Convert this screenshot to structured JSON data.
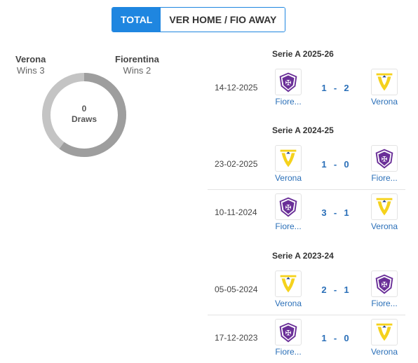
{
  "tabs": [
    {
      "label": "TOTAL",
      "active": true
    },
    {
      "label": "VER HOME / FIO AWAY",
      "active": false
    }
  ],
  "summary": {
    "left_team": {
      "name": "Verona",
      "wins": "Wins 3"
    },
    "right_team": {
      "name": "Fiorentina",
      "wins": "Wins 2"
    },
    "draws_count": "0",
    "draws_label": "Draws",
    "colors": {
      "verona": "#9e9e9e",
      "fiorentina": "#c4c4c4"
    }
  },
  "seasons": [
    {
      "title": "Serie A 2025-26",
      "matches": [
        {
          "date": "14-12-2025",
          "home": {
            "name": "Fiore...",
            "logo": "fiorentina-logo"
          },
          "home_goals": "1",
          "sep": "-",
          "away_goals": "2",
          "away": {
            "name": "Verona",
            "logo": "verona-logo"
          }
        }
      ]
    },
    {
      "title": "Serie A 2024-25",
      "matches": [
        {
          "date": "23-02-2025",
          "home": {
            "name": "Verona",
            "logo": "verona-logo"
          },
          "home_goals": "1",
          "sep": "-",
          "away_goals": "0",
          "away": {
            "name": "Fiore...",
            "logo": "fiorentina-logo"
          }
        },
        {
          "date": "10-11-2024",
          "home": {
            "name": "Fiore...",
            "logo": "fiorentina-logo"
          },
          "home_goals": "3",
          "sep": "-",
          "away_goals": "1",
          "away": {
            "name": "Verona",
            "logo": "verona-logo"
          }
        }
      ]
    },
    {
      "title": "Serie A 2023-24",
      "matches": [
        {
          "date": "05-05-2024",
          "home": {
            "name": "Verona",
            "logo": "verona-logo"
          },
          "home_goals": "2",
          "sep": "-",
          "away_goals": "1",
          "away": {
            "name": "Fiore...",
            "logo": "fiorentina-logo"
          }
        },
        {
          "date": "17-12-2023",
          "home": {
            "name": "Fiore...",
            "logo": "fiorentina-logo"
          },
          "home_goals": "1",
          "sep": "-",
          "away_goals": "0",
          "away": {
            "name": "Verona",
            "logo": "verona-logo"
          }
        }
      ]
    }
  ]
}
